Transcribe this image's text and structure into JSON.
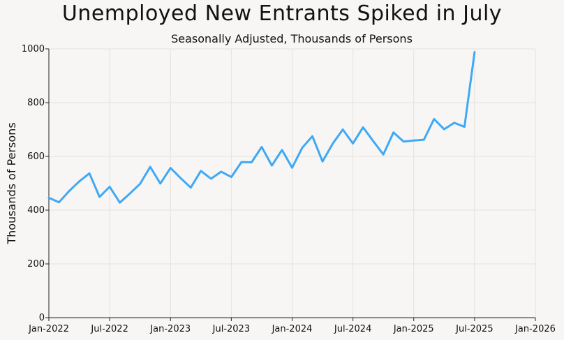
{
  "chart_data": {
    "type": "line",
    "title": "Unemployed New Entrants Spiked in July",
    "subtitle": "Seasonally Adjusted, Thousands of Persons",
    "xlabel": "",
    "ylabel": "Thousands of Persons",
    "ylim": [
      0,
      1000
    ],
    "xlim": [
      "2022-01",
      "2026-01"
    ],
    "yticks": [
      0,
      200,
      400,
      600,
      800,
      1000
    ],
    "xticks": [
      "Jan-2022",
      "Jul-2022",
      "Jan-2023",
      "Jul-2023",
      "Jan-2024",
      "Jul-2024",
      "Jan-2025",
      "Jul-2025",
      "Jan-2026"
    ],
    "grid": true,
    "line_color": "#3fa9f5",
    "series": [
      {
        "x": [
          "2022-01",
          "2022-02",
          "2022-03",
          "2022-04",
          "2022-05",
          "2022-06",
          "2022-07",
          "2022-08",
          "2022-09",
          "2022-10",
          "2022-11",
          "2022-12",
          "2023-01",
          "2023-02",
          "2023-03",
          "2023-04",
          "2023-05",
          "2023-06",
          "2023-07",
          "2023-08",
          "2023-09",
          "2023-10",
          "2023-11",
          "2023-12",
          "2024-01",
          "2024-02",
          "2024-03",
          "2024-04",
          "2024-05",
          "2024-06",
          "2024-07",
          "2024-08",
          "2024-09",
          "2024-10",
          "2024-11",
          "2024-12",
          "2025-01",
          "2025-02",
          "2025-03",
          "2025-04",
          "2025-05",
          "2025-06",
          "2025-07"
        ],
        "values": [
          446,
          429,
          471,
          507,
          537,
          449,
          487,
          428,
          462,
          498,
          561,
          499,
          557,
          519,
          484,
          546,
          517,
          543,
          523,
          579,
          578,
          635,
          566,
          624,
          558,
          632,
          675,
          581,
          647,
          700,
          648,
          708,
          657,
          607,
          689,
          655,
          659,
          662,
          739,
          701,
          725,
          710,
          988
        ]
      }
    ]
  }
}
